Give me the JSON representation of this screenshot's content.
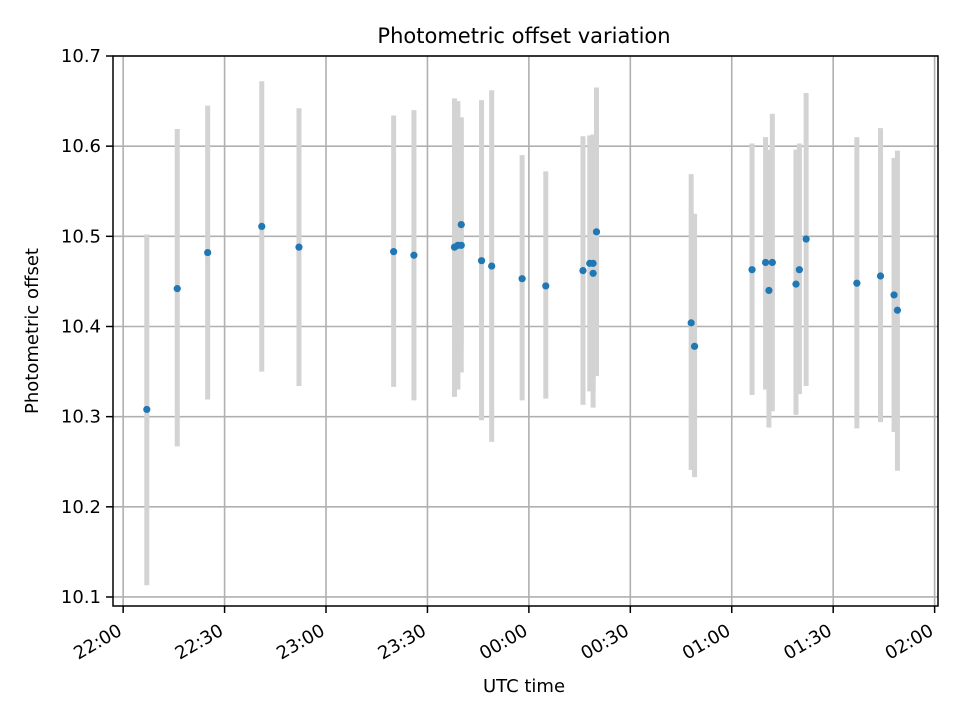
{
  "chart_data": {
    "type": "scatter",
    "title": "Photometric offset variation",
    "xlabel": "UTC time",
    "ylabel": "Photometric offset",
    "x_ticks": [
      "22:00",
      "22:30",
      "23:00",
      "23:30",
      "00:00",
      "00:30",
      "01:00",
      "01:30",
      "02:00"
    ],
    "y_ticks": [
      "10.1",
      "10.2",
      "10.3",
      "10.4",
      "10.5",
      "10.6",
      "10.7"
    ],
    "xlim": [
      "21:57",
      "02:01"
    ],
    "ylim": [
      10.09,
      10.7
    ],
    "grid": true,
    "error_bar_color": "#d3d3d3",
    "marker_color": "#1f77b4",
    "series": [
      {
        "points": [
          {
            "x": "22:07",
            "y": 10.308,
            "ylow": 10.113,
            "yhigh": 10.502
          },
          {
            "x": "22:16",
            "y": 10.442,
            "ylow": 10.267,
            "yhigh": 10.619
          },
          {
            "x": "22:25",
            "y": 10.482,
            "ylow": 10.319,
            "yhigh": 10.645
          },
          {
            "x": "22:41",
            "y": 10.511,
            "ylow": 10.35,
            "yhigh": 10.672
          },
          {
            "x": "22:52",
            "y": 10.488,
            "ylow": 10.334,
            "yhigh": 10.642
          },
          {
            "x": "23:20",
            "y": 10.483,
            "ylow": 10.333,
            "yhigh": 10.634
          },
          {
            "x": "23:26",
            "y": 10.479,
            "ylow": 10.318,
            "yhigh": 10.64
          },
          {
            "x": "23:38",
            "y": 10.488,
            "ylow": 10.322,
            "yhigh": 10.653
          },
          {
            "x": "23:39",
            "y": 10.49,
            "ylow": 10.33,
            "yhigh": 10.65
          },
          {
            "x": "23:40",
            "y": 10.513,
            "ylow": 10.38,
            "yhigh": 10.632
          },
          {
            "x": "23:40",
            "y": 10.49,
            "ylow": 10.349,
            "yhigh": 10.63
          },
          {
            "x": "23:46",
            "y": 10.473,
            "ylow": 10.296,
            "yhigh": 10.651
          },
          {
            "x": "23:49",
            "y": 10.467,
            "ylow": 10.272,
            "yhigh": 10.662
          },
          {
            "x": "23:58",
            "y": 10.453,
            "ylow": 10.318,
            "yhigh": 10.59
          },
          {
            "x": "00:05",
            "y": 10.445,
            "ylow": 10.32,
            "yhigh": 10.572
          },
          {
            "x": "00:16",
            "y": 10.462,
            "ylow": 10.313,
            "yhigh": 10.611
          },
          {
            "x": "00:18",
            "y": 10.47,
            "ylow": 10.328,
            "yhigh": 10.612
          },
          {
            "x": "00:19",
            "y": 10.47,
            "ylow": 10.33,
            "yhigh": 10.613
          },
          {
            "x": "00:19",
            "y": 10.459,
            "ylow": 10.31,
            "yhigh": 10.61
          },
          {
            "x": "00:20",
            "y": 10.505,
            "ylow": 10.345,
            "yhigh": 10.665
          },
          {
            "x": "00:48",
            "y": 10.404,
            "ylow": 10.241,
            "yhigh": 10.569
          },
          {
            "x": "00:49",
            "y": 10.378,
            "ylow": 10.233,
            "yhigh": 10.525
          },
          {
            "x": "01:06",
            "y": 10.463,
            "ylow": 10.324,
            "yhigh": 10.603
          },
          {
            "x": "01:10",
            "y": 10.471,
            "ylow": 10.33,
            "yhigh": 10.61
          },
          {
            "x": "01:11",
            "y": 10.44,
            "ylow": 10.288,
            "yhigh": 10.596
          },
          {
            "x": "01:12",
            "y": 10.471,
            "ylow": 10.306,
            "yhigh": 10.636
          },
          {
            "x": "01:19",
            "y": 10.447,
            "ylow": 10.302,
            "yhigh": 10.596
          },
          {
            "x": "01:20",
            "y": 10.463,
            "ylow": 10.325,
            "yhigh": 10.603
          },
          {
            "x": "01:22",
            "y": 10.497,
            "ylow": 10.334,
            "yhigh": 10.659
          },
          {
            "x": "01:37",
            "y": 10.448,
            "ylow": 10.287,
            "yhigh": 10.61
          },
          {
            "x": "01:44",
            "y": 10.456,
            "ylow": 10.294,
            "yhigh": 10.62
          },
          {
            "x": "01:48",
            "y": 10.435,
            "ylow": 10.283,
            "yhigh": 10.587
          },
          {
            "x": "01:49",
            "y": 10.418,
            "ylow": 10.24,
            "yhigh": 10.595
          }
        ]
      }
    ]
  }
}
